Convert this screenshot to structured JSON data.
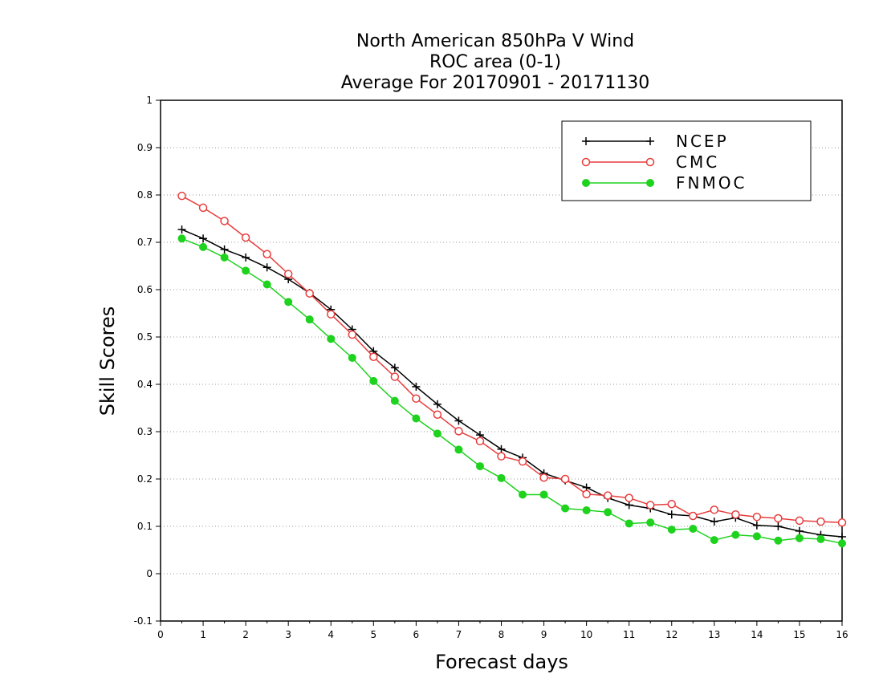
{
  "chart_data": {
    "type": "line",
    "title_lines": [
      "North American 850hPa V Wind",
      "ROC area (0-1)",
      "Average For 20170901 - 20171130"
    ],
    "xlabel": "Forecast days",
    "ylabel": "Skill Scores",
    "xlim": [
      0,
      16
    ],
    "ylim": [
      -0.1,
      1
    ],
    "xticks": [
      0,
      1,
      2,
      3,
      4,
      5,
      6,
      7,
      8,
      9,
      10,
      11,
      12,
      13,
      14,
      15,
      16
    ],
    "xtick_labels": [
      "0",
      "1",
      "2",
      "3",
      "4",
      "5",
      "6",
      "7",
      "8",
      "9",
      "10",
      "11",
      "12",
      "13",
      "14",
      "15",
      "16"
    ],
    "yticks": [
      -0.1,
      0,
      0.1,
      0.2,
      0.3,
      0.4,
      0.5,
      0.6,
      0.7,
      0.8,
      0.9,
      1
    ],
    "ytick_labels": [
      "-0.1",
      "0",
      "0.1",
      "0.2",
      "0.3",
      "0.4",
      "0.5",
      "0.6",
      "0.7",
      "0.8",
      "0.9",
      "1"
    ],
    "grid": true,
    "legend_position": "top-right",
    "x": [
      0.5,
      1,
      1.5,
      2,
      2.5,
      3,
      3.5,
      4,
      4.5,
      5,
      5.5,
      6,
      6.5,
      7,
      7.5,
      8,
      8.5,
      9,
      9.5,
      10,
      10.5,
      11,
      11.5,
      12,
      12.5,
      13,
      13.5,
      14,
      14.5,
      15,
      15.5,
      16
    ],
    "series": [
      {
        "name": "NCEP",
        "color": "#000000",
        "marker": "plus",
        "values": [
          0.727,
          0.708,
          0.685,
          0.668,
          0.647,
          0.622,
          0.593,
          0.558,
          0.516,
          0.47,
          0.435,
          0.395,
          0.358,
          0.323,
          0.293,
          0.263,
          0.245,
          0.212,
          0.197,
          0.182,
          0.16,
          0.145,
          0.138,
          0.125,
          0.122,
          0.11,
          0.118,
          0.102,
          0.1,
          0.09,
          0.082,
          0.078
        ]
      },
      {
        "name": "CMC",
        "color": "#e83c3c",
        "marker": "open-circle",
        "values": [
          0.798,
          0.773,
          0.745,
          0.71,
          0.675,
          0.633,
          0.592,
          0.548,
          0.505,
          0.458,
          0.416,
          0.37,
          0.336,
          0.301,
          0.28,
          0.248,
          0.237,
          0.203,
          0.2,
          0.168,
          0.165,
          0.16,
          0.145,
          0.147,
          0.122,
          0.135,
          0.125,
          0.12,
          0.117,
          0.112,
          0.11,
          0.108
        ]
      },
      {
        "name": "FNMOC",
        "color": "#1ed21e",
        "marker": "filled-circle",
        "values": [
          0.708,
          0.69,
          0.668,
          0.64,
          0.611,
          0.574,
          0.537,
          0.496,
          0.456,
          0.407,
          0.365,
          0.328,
          0.296,
          0.262,
          0.227,
          0.202,
          0.167,
          0.167,
          0.138,
          0.134,
          0.13,
          0.106,
          0.108,
          0.093,
          0.095,
          0.071,
          0.082,
          0.079,
          0.07,
          0.075,
          0.073,
          0.064
        ]
      }
    ]
  }
}
